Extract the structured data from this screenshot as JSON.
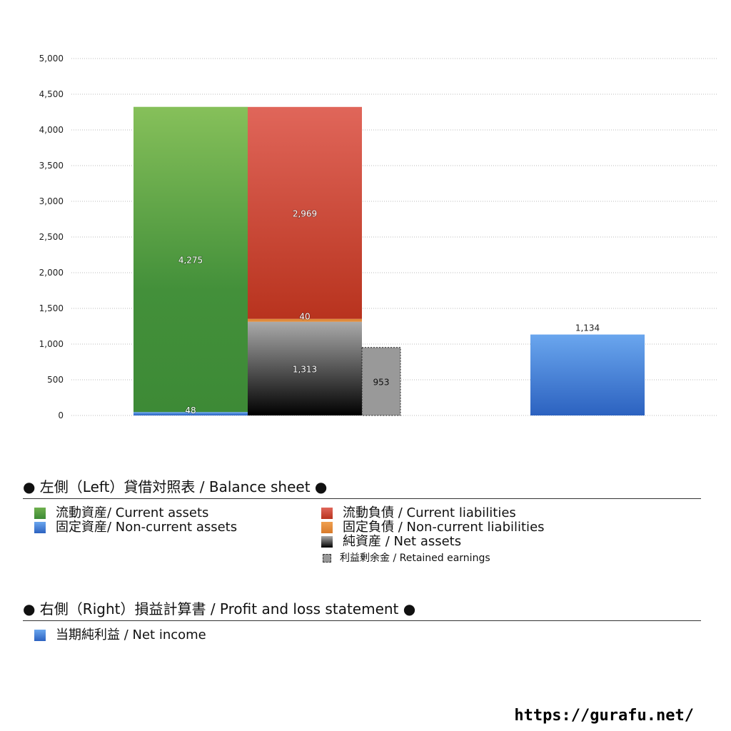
{
  "chart_data": {
    "type": "bar",
    "stacked": true,
    "ylim": [
      0,
      5000
    ],
    "yticks": [
      "0",
      "500",
      "1,000",
      "1,500",
      "2,000",
      "2,500",
      "3,000",
      "3,500",
      "4,000",
      "4,500",
      "5,000"
    ],
    "grid": true,
    "bars": [
      {
        "group": "left-assets",
        "segments": [
          {
            "name": "固定資産/ Non-current assets",
            "value": 48,
            "label": "48",
            "color": "#3f7fd6"
          },
          {
            "name": "流動資産/ Current assets",
            "value": 4275,
            "label": "4,275",
            "color": "#4a9a3e"
          }
        ]
      },
      {
        "group": "left-liabilities",
        "segments": [
          {
            "name": "純資産 / Net assets",
            "value": 1313,
            "label": "1,313",
            "color": "#333333"
          },
          {
            "name": "固定負債 / Non-current liabilities",
            "value": 40,
            "label": "40",
            "color": "#e08a3a"
          },
          {
            "name": "流動負債 /  Current liabilities",
            "value": 2969,
            "label": "2,969",
            "color": "#c8402c"
          }
        ]
      },
      {
        "group": "left-retained",
        "segments": [
          {
            "name": "利益剰余金 / Retained earnings",
            "value": 953,
            "label": "953",
            "color": "#999999"
          }
        ]
      },
      {
        "group": "right",
        "segments": [
          {
            "name": "当期純利益 / Net income",
            "value": 1134,
            "label": "1,134",
            "color": "#3f7fd6"
          }
        ]
      }
    ]
  },
  "legend": {
    "left_title": "● 左側（Left）貸借対照表 / Balance sheet ●",
    "left_items": [
      {
        "label": "流動資産/ Current assets",
        "color": "#4a9a3e"
      },
      {
        "label": "固定資産/ Non-current assets",
        "color": "#3f7fd6"
      },
      {
        "label": "流動負債 /  Current liabilities",
        "color": "#c8402c"
      },
      {
        "label": "固定負債 / Non-current liabilities",
        "color": "#e08a3a"
      },
      {
        "label": "純資産 / Net assets",
        "color": "#222222"
      },
      {
        "label": "利益剰余金 / Retained earnings",
        "color": "#999999"
      }
    ],
    "right_title": "● 右側（Right）損益計算書 / Profit and loss statement ●",
    "right_items": [
      {
        "label": "当期純利益 / Net income",
        "color": "#3f7fd6"
      }
    ]
  },
  "footer": {
    "url": "https://gurafu.net/"
  }
}
